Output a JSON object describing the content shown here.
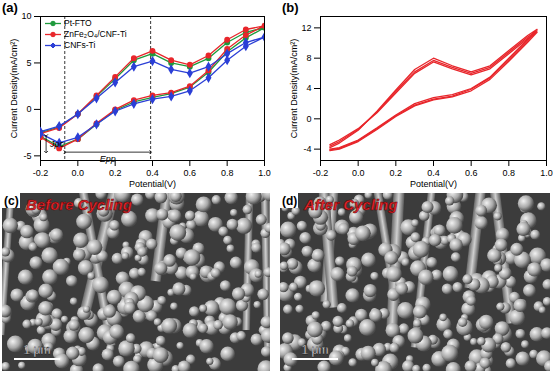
{
  "chart_data": [
    {
      "type": "line",
      "title": "(a)",
      "x_label": "Potential(V)",
      "y_label": "Current Density(mA/cm²)",
      "xlim": [
        -0.2,
        1.0
      ],
      "xticks": [
        -0.2,
        {
          "value": 0,
          "label": "0.0"
        },
        0.2,
        0.4,
        0.6,
        0.8,
        {
          "value": 1,
          "label": "1.0"
        }
      ],
      "ylim": [
        -5.5,
        10
      ],
      "yticks": [
        -5,
        0,
        5,
        10
      ],
      "legend": "top-left",
      "x": [
        -0.2,
        -0.1,
        0.0,
        0.1,
        0.2,
        0.3,
        0.4,
        0.5,
        0.6,
        0.7,
        0.8,
        0.9,
        1.0,
        0.9,
        0.8,
        0.7,
        0.6,
        0.5,
        0.4,
        0.3,
        0.2,
        0.1,
        0.0,
        -0.1,
        -0.2
      ],
      "series": [
        {
          "name": "Pt-FTO",
          "color": "#1e9a3c",
          "marker": "circle",
          "values": [
            -2.5,
            -1.9,
            -0.5,
            1.4,
            3.3,
            5.3,
            6.0,
            5.0,
            4.6,
            5.5,
            7.2,
            8.3,
            8.8,
            7.7,
            6.2,
            4.0,
            2.4,
            1.7,
            1.3,
            0.8,
            -0.1,
            -1.6,
            -3.2,
            -4.0,
            -2.9
          ]
        },
        {
          "name": "ZnFe₂O₄/CNF-Ti",
          "color": "#e8262b",
          "marker": "circle",
          "values": [
            -2.6,
            -2.0,
            -0.5,
            1.5,
            3.5,
            5.5,
            6.3,
            5.3,
            4.8,
            5.8,
            7.5,
            8.6,
            9.0,
            8.0,
            6.5,
            4.2,
            2.5,
            1.8,
            1.5,
            1.0,
            0.0,
            -1.5,
            -3.2,
            -4.2,
            -3.0
          ]
        },
        {
          "name": "CNFs-Ti",
          "color": "#2b3fd6",
          "marker": "diamond",
          "values": [
            -2.4,
            -1.8,
            -0.5,
            1.2,
            2.9,
            4.6,
            5.2,
            4.3,
            3.9,
            4.6,
            6.0,
            7.2,
            7.8,
            6.8,
            5.3,
            3.4,
            2.0,
            1.4,
            1.1,
            0.6,
            -0.2,
            -1.6,
            -3.0,
            -3.6,
            -2.6
          ]
        }
      ],
      "vlines": [
        -0.07,
        0.39
      ],
      "annotations": [
        {
          "text": "Jpc",
          "x": -0.17,
          "y1": -2.8,
          "y2": -4.6
        },
        {
          "text": "Epp",
          "x1": -0.07,
          "x2": 0.39,
          "y": -4.6
        }
      ]
    },
    {
      "type": "line",
      "title": "(b)",
      "x_label": "Potential(V)",
      "y_label": "Current Density(mA/cm²)",
      "xlim": [
        -0.2,
        1.0
      ],
      "xticks": [
        -0.2,
        {
          "value": 0,
          "label": "0.0"
        },
        0.2,
        0.4,
        0.6,
        0.8,
        {
          "value": 1,
          "label": "1.0"
        }
      ],
      "ylim": [
        -5.5,
        13.5
      ],
      "yticks": [
        -4,
        0,
        4,
        8,
        12
      ],
      "x": [
        -0.15,
        -0.1,
        0.0,
        0.1,
        0.2,
        0.3,
        0.4,
        0.5,
        0.6,
        0.7,
        0.8,
        0.9,
        0.95,
        0.9,
        0.8,
        0.7,
        0.6,
        0.5,
        0.4,
        0.3,
        0.2,
        0.1,
        0.0,
        -0.1,
        -0.15
      ],
      "series": [
        {
          "color": "#e8262b",
          "values": [
            -3.8,
            -3.2,
            -1.5,
            1.0,
            3.8,
            6.5,
            8.0,
            7.0,
            6.2,
            7.0,
            9.0,
            11.0,
            11.8,
            10.5,
            8.0,
            5.5,
            4.0,
            3.2,
            2.8,
            2.0,
            0.5,
            -1.2,
            -2.8,
            -3.8,
            -4.0
          ]
        },
        {
          "color": "#e8262b",
          "values": [
            -3.6,
            -3.0,
            -1.4,
            0.9,
            3.6,
            6.2,
            7.7,
            6.8,
            6.0,
            6.8,
            8.8,
            10.8,
            11.6,
            10.3,
            7.8,
            5.4,
            3.9,
            3.0,
            2.6,
            1.8,
            0.4,
            -1.3,
            -2.9,
            -3.9,
            -4.1
          ]
        },
        {
          "color": "#e8262b",
          "values": [
            -3.4,
            -2.8,
            -1.3,
            0.8,
            3.4,
            6.0,
            7.5,
            6.6,
            5.8,
            6.6,
            8.6,
            10.6,
            11.4,
            10.1,
            7.6,
            5.2,
            3.7,
            2.9,
            2.5,
            1.7,
            0.3,
            -1.4,
            -3.0,
            -4.0,
            -4.2
          ]
        }
      ]
    }
  ],
  "images": [
    {
      "label": "(c)",
      "caption": "Before Cycling",
      "scale_bar": "1 μm"
    },
    {
      "label": "(d)",
      "caption": "After Cycling",
      "scale_bar": "1 μm"
    }
  ]
}
